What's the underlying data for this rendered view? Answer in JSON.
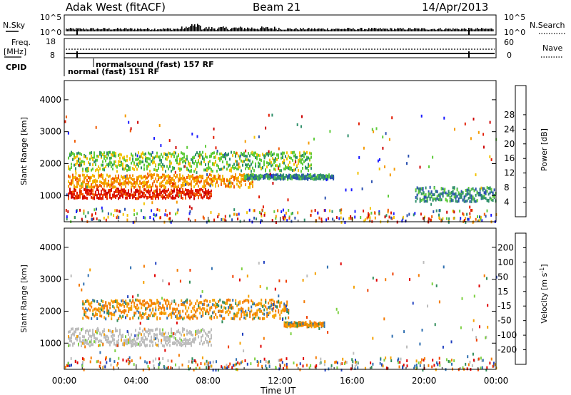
{
  "header": {
    "station": "Adak West (fitACF)",
    "beam": "Beam 21",
    "date": "14/Apr/2013"
  },
  "status_panel": {
    "nsky_label": "N.Sky",
    "nsky_ticks": [
      "10^5",
      "10^0"
    ],
    "nsearch_label": "N.Search",
    "nsearch_ticks": [
      "10^5",
      "10^0"
    ],
    "freq_label_line1": "Freq.",
    "freq_label_line2": "[MHz]",
    "freq_ticks": [
      "18",
      "8"
    ],
    "nave_label": "Nave",
    "nave_ticks": [
      "60",
      "0"
    ],
    "cpid_label": "CPID",
    "cpid_entries": [
      "normalsound (fast) 157 RF",
      "normal (fast) 151 RF"
    ]
  },
  "chart_data": [
    {
      "type": "heatmap",
      "name": "power",
      "ylabel": "Slant Range [km]",
      "ylim": [
        180,
        4600
      ],
      "yticks": [
        1000,
        2000,
        3000,
        4000
      ],
      "xlim_hours": [
        0,
        24
      ],
      "colorbar": {
        "label": "Power [dB]",
        "ticks": [
          "4",
          "8",
          "12",
          "16",
          "20",
          "24",
          "28"
        ],
        "colors": [
          "#1a1aff",
          "#2a50b0",
          "#2f8f6a",
          "#5ecb3a",
          "#f2c200",
          "#f59a00",
          "#f05a00",
          "#e21b00",
          "#cc0000"
        ]
      },
      "features": [
        {
          "desc": "strong band",
          "hours": [
            0.2,
            8.2
          ],
          "range_km": [
            950,
            1250
          ],
          "power_db": 28
        },
        {
          "desc": "mid band",
          "hours": [
            0.2,
            10.5
          ],
          "range_km": [
            1300,
            1700
          ],
          "power_db": 18
        },
        {
          "desc": "upper band",
          "hours": [
            0.2,
            13.8
          ],
          "range_km": [
            1800,
            2400
          ],
          "power_db": 12
        },
        {
          "desc": "patch",
          "hours": [
            10.0,
            15.0
          ],
          "range_km": [
            1550,
            1700
          ],
          "power_db": 8
        },
        {
          "desc": "evening echoes",
          "hours": [
            19.5,
            24.0
          ],
          "range_km": [
            850,
            1300
          ],
          "power_db": 6
        }
      ]
    },
    {
      "type": "heatmap",
      "name": "velocity",
      "ylabel": "Slant Range [km]",
      "ylim": [
        180,
        4600
      ],
      "yticks": [
        1000,
        2000,
        3000,
        4000
      ],
      "xlim_hours": [
        0,
        24
      ],
      "xticks": [
        "00:00",
        "04:00",
        "08:00",
        "12:00",
        "16:00",
        "20:00",
        "00:00"
      ],
      "xlabel": "Time UT",
      "colorbar": {
        "label": "Velocity [m s",
        "label_sup": "-1",
        "label_end": "]",
        "ticks": [
          "200",
          "100",
          "50",
          "15",
          "-15",
          "-50",
          "-100",
          "-200"
        ],
        "colors": [
          "#1f3fbf",
          "#2f6fb0",
          "#2e8b57",
          "#7cd040",
          "#bdbdbd",
          "#f4a000",
          "#f47a00",
          "#f04000",
          "#e00000"
        ]
      },
      "features": [
        {
          "desc": "ground scatter",
          "hours": [
            0.2,
            8.2
          ],
          "range_km": [
            950,
            1500
          ],
          "velocity": 0
        },
        {
          "desc": "mixed band",
          "hours": [
            1.0,
            12.5
          ],
          "range_km": [
            1800,
            2400
          ],
          "velocity": -40
        },
        {
          "desc": "orange patch",
          "hours": [
            12.2,
            14.5
          ],
          "range_km": [
            1550,
            1700
          ],
          "velocity": -40
        }
      ]
    }
  ]
}
